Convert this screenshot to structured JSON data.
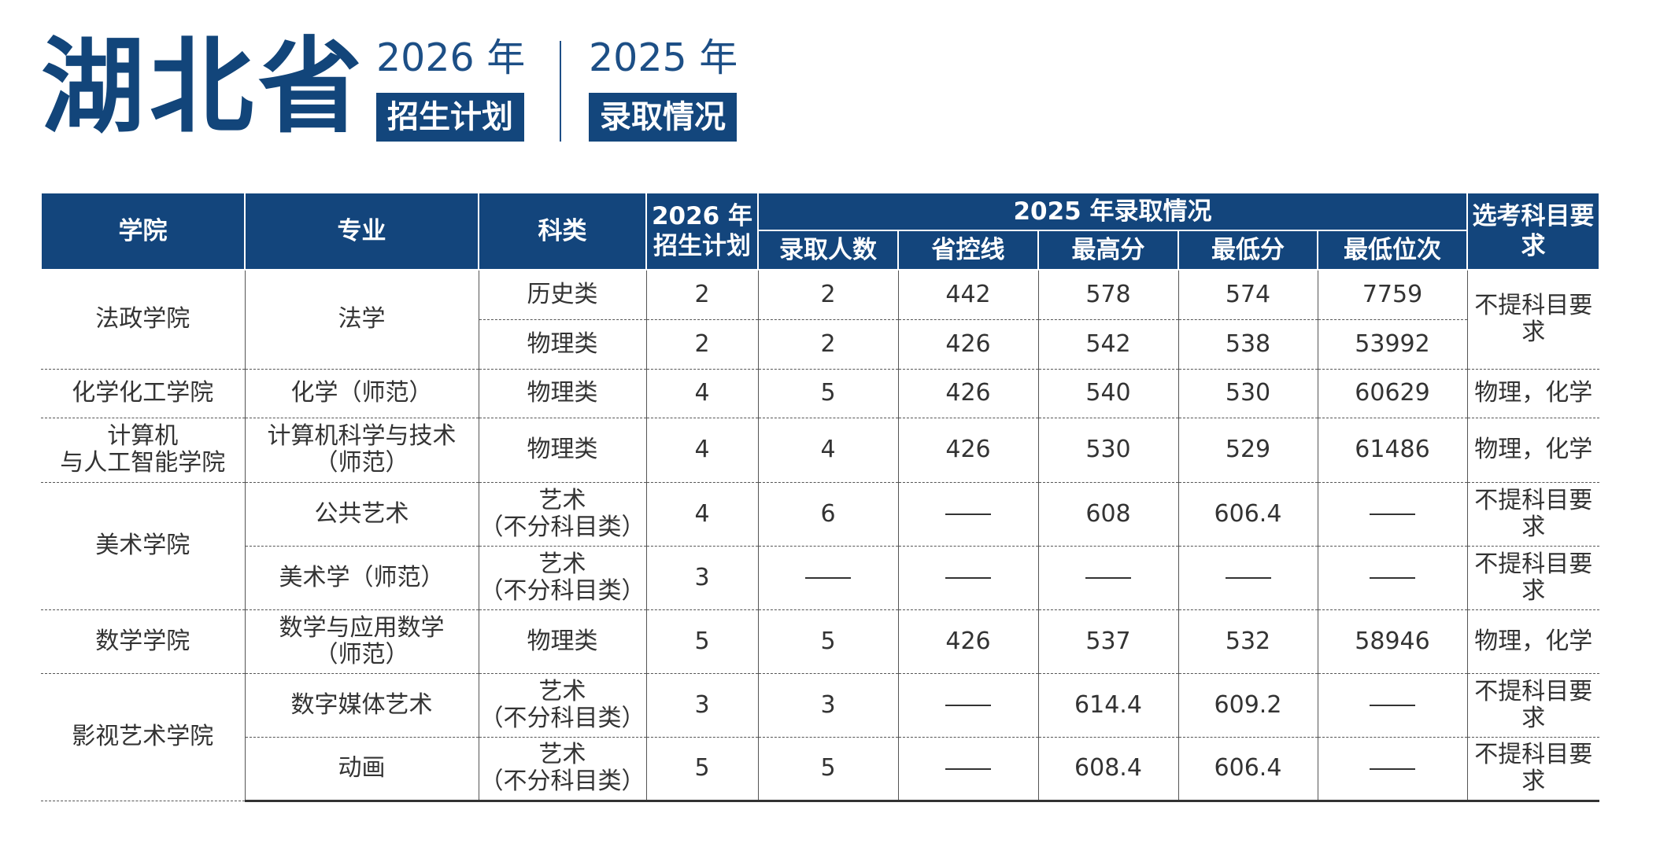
{
  "header": {
    "province": "湖北省",
    "plan_year": "2026 年",
    "plan_label": "招生计划",
    "admit_year": "2025 年",
    "admit_label": "录取情况"
  },
  "table": {
    "h_college": "学院",
    "h_major": "专业",
    "h_category": "科类",
    "h_plan_line1": "2026 年",
    "h_plan_line2": "招生计划",
    "h_admit_group": "2025 年录取情况",
    "h_count": "录取人数",
    "h_control": "省控线",
    "h_max": "最高分",
    "h_min": "最低分",
    "h_rank": "最低位次",
    "h_req": "选考科目要求"
  },
  "rows": [
    {
      "college": "法政学院",
      "major": "法学",
      "category": "历史类",
      "plan": "2",
      "count": "2",
      "control": "442",
      "max": "578",
      "min": "574",
      "rank": "7759",
      "req": "不提科目要求"
    },
    {
      "category": "物理类",
      "plan": "2",
      "count": "2",
      "control": "426",
      "max": "542",
      "min": "538",
      "rank": "53992"
    },
    {
      "college": "化学化工学院",
      "major": "化学（师范）",
      "category": "物理类",
      "plan": "4",
      "count": "5",
      "control": "426",
      "max": "540",
      "min": "530",
      "rank": "60629",
      "req": "物理，化学"
    },
    {
      "college_l1": "计算机",
      "college_l2": "与人工智能学院",
      "major_l1": "计算机科学与技术",
      "major_l2": "（师范）",
      "category": "物理类",
      "plan": "4",
      "count": "4",
      "control": "426",
      "max": "530",
      "min": "529",
      "rank": "61486",
      "req": "物理，化学"
    },
    {
      "college": "美术学院",
      "major": "公共艺术",
      "category_l1": "艺术",
      "category_l2": "（不分科目类）",
      "plan": "4",
      "count": "6",
      "max": "608",
      "min": "606.4",
      "req": "不提科目要求"
    },
    {
      "major": "美术学（师范）",
      "category_l1": "艺术",
      "category_l2": "（不分科目类）",
      "plan": "3",
      "req": "不提科目要求"
    },
    {
      "college": "数学学院",
      "major_l1": "数学与应用数学",
      "major_l2": "（师范）",
      "category": "物理类",
      "plan": "5",
      "count": "5",
      "control": "426",
      "max": "537",
      "min": "532",
      "rank": "58946",
      "req": "物理，化学"
    },
    {
      "college": "影视艺术学院",
      "major": "数字媒体艺术",
      "category_l1": "艺术",
      "category_l2": "（不分科目类）",
      "plan": "3",
      "count": "3",
      "max": "614.4",
      "min": "609.2",
      "req": "不提科目要求"
    },
    {
      "major": "动画",
      "category_l1": "艺术",
      "category_l2": "（不分科目类）",
      "plan": "5",
      "count": "5",
      "max": "608.4",
      "min": "606.4",
      "req": "不提科目要求"
    }
  ]
}
